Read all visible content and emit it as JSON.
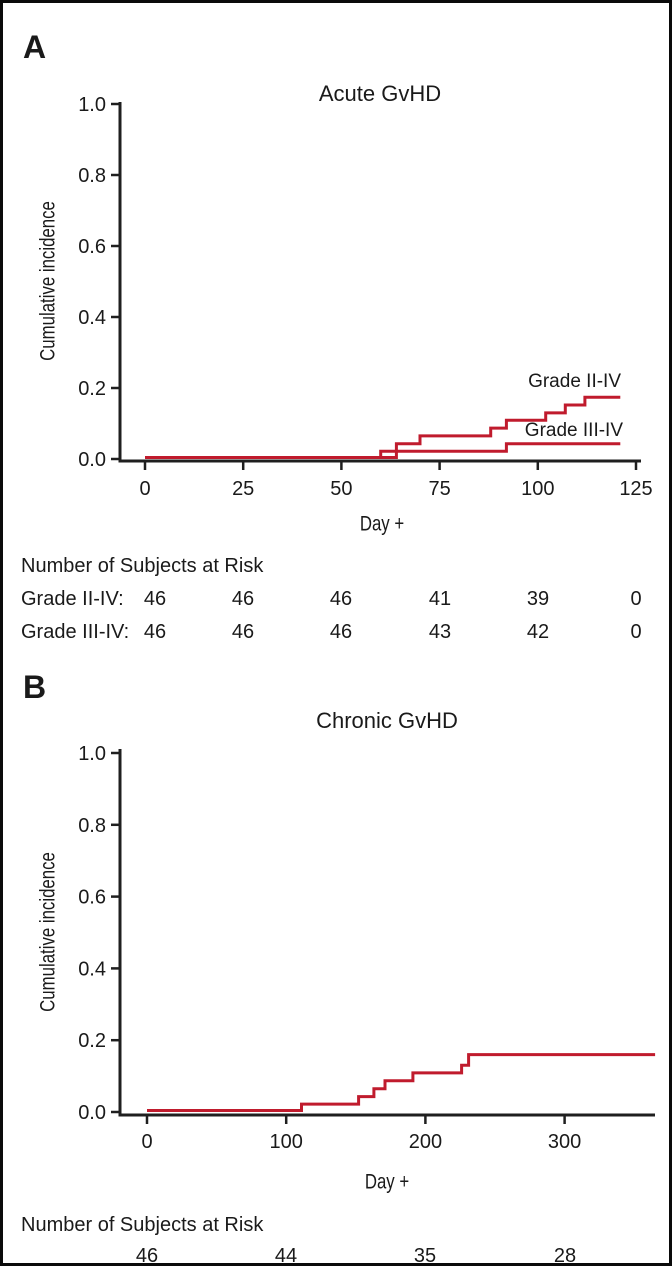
{
  "figure": {
    "background_color": "#ffffff",
    "border_color": "#0a0a0a",
    "curve_color": "#c01b2d",
    "axis_color": "#1f1f1f",
    "text_color": "#1a1a1a"
  },
  "panels": [
    {
      "letter": "A",
      "title": "Acute GvHD",
      "xlabel": "Day +",
      "ylabel": "Cumulative incidence",
      "risk_header": "Number of Subjects at Risk"
    },
    {
      "letter": "B",
      "title": "Chronic GvHD",
      "xlabel": "Day +",
      "ylabel": "Cumulative incidence",
      "risk_header": "Number of Subjects at Risk"
    }
  ],
  "chart_data": [
    {
      "type": "line",
      "subtype": "step-cumulative-incidence",
      "title": "Acute GvHD",
      "xlabel": "Day +",
      "ylabel": "Cumulative incidence",
      "xlim": [
        0,
        126
      ],
      "xticks": [
        0,
        25,
        50,
        75,
        100,
        125
      ],
      "xtick_labels": [
        "0",
        "25",
        "50",
        "75",
        "100",
        "125"
      ],
      "ylim": [
        0,
        1.0
      ],
      "yticks": [
        0,
        0.2,
        0.4,
        0.6,
        0.8,
        1.0
      ],
      "ytick_labels": [
        "0.0",
        "0.2",
        "0.4",
        "0.6",
        "0.8",
        "1.0"
      ],
      "grid": false,
      "legend_position": "inline-labels-right",
      "series": [
        {
          "name": "Grade II-IV",
          "points": [
            [
              0,
              0
            ],
            [
              60,
              0.022
            ],
            [
              64,
              0.043
            ],
            [
              70,
              0.065
            ],
            [
              88,
              0.087
            ],
            [
              92,
              0.109
            ],
            [
              102,
              0.13
            ],
            [
              107,
              0.152
            ],
            [
              112,
              0.174
            ],
            [
              121,
              0.174
            ]
          ]
        },
        {
          "name": "Grade III-IV",
          "points": [
            [
              0,
              0
            ],
            [
              64,
              0.022
            ],
            [
              92,
              0.043
            ],
            [
              121,
              0.043
            ]
          ]
        }
      ],
      "risk_table": {
        "header": "Number of Subjects at Risk",
        "at_days": [
          0,
          25,
          50,
          75,
          100,
          125
        ],
        "rows": [
          {
            "label": "Grade II-IV:",
            "values": [
              "46",
              "46",
              "46",
              "41",
              "39",
              "0"
            ]
          },
          {
            "label": "Grade III-IV:",
            "values": [
              "46",
              "46",
              "46",
              "43",
              "42",
              "0"
            ]
          }
        ]
      }
    },
    {
      "type": "line",
      "subtype": "step-cumulative-incidence",
      "title": "Chronic GvHD",
      "xlabel": "Day +",
      "ylabel": "Cumulative incidence",
      "xlim": [
        0,
        365
      ],
      "xticks": [
        0,
        100,
        200,
        300
      ],
      "xtick_labels": [
        "0",
        "100",
        "200",
        "300"
      ],
      "ylim": [
        0,
        1.0
      ],
      "yticks": [
        0,
        0.2,
        0.4,
        0.6,
        0.8,
        1.0
      ],
      "ytick_labels": [
        "0.0",
        "0.2",
        "0.4",
        "0.6",
        "0.8",
        "1.0"
      ],
      "grid": false,
      "legend_position": "none",
      "series": [
        {
          "name": "Chronic GvHD",
          "points": [
            [
              0,
              0
            ],
            [
              111,
              0.022
            ],
            [
              152,
              0.043
            ],
            [
              163,
              0.065
            ],
            [
              171,
              0.087
            ],
            [
              191,
              0.109
            ],
            [
              226,
              0.13
            ],
            [
              231,
              0.16
            ],
            [
              365,
              0.16
            ]
          ]
        }
      ],
      "risk_table": {
        "header": "Number of Subjects at Risk",
        "at_days": [
          0,
          100,
          200,
          300
        ],
        "rows": [
          {
            "label": "",
            "values": [
              "46",
              "44",
              "35",
              "28"
            ]
          }
        ]
      }
    }
  ]
}
